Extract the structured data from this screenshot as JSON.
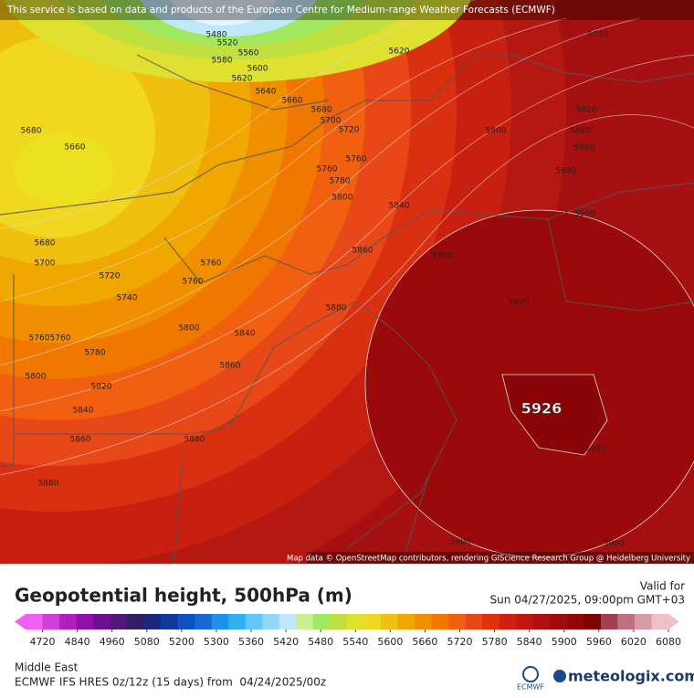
{
  "banner": "This service is based on data and products of the European Centre for Medium-range Weather Forecasts (ECMWF)",
  "map": {
    "contour_labels": [
      5480,
      5520,
      5560,
      5580,
      5600,
      5620,
      5640,
      5660,
      5680,
      5700,
      5720,
      5760,
      5760,
      5780,
      5800,
      5840,
      5860,
      5880,
      5900,
      5920,
      5900,
      5880,
      5860,
      5840,
      5820,
      5800,
      5720,
      5620,
      5680,
      5660,
      5680,
      5700,
      5720,
      5740,
      5760,
      5760,
      5760,
      5760,
      5780,
      5800,
      5820,
      5840,
      5860,
      5800,
      5840,
      5860,
      5880,
      5880,
      5900,
      5900,
      5920
    ],
    "max_label": 5926,
    "attribution": "Map data © OpenStreetMap contributors, rendering GIScience Research Group @ Heidelberg University"
  },
  "legend": {
    "title": "Geopotential height, 500hPa (m)",
    "ticks": [
      4720,
      4840,
      4960,
      5080,
      5200,
      5300,
      5360,
      5420,
      5480,
      5540,
      5600,
      5660,
      5720,
      5780,
      5840,
      5900,
      5960,
      6020,
      6080
    ],
    "colors": [
      "#f060f0",
      "#d040d8",
      "#b020c0",
      "#9010a8",
      "#701090",
      "#501878",
      "#302060",
      "#1a2a80",
      "#103aa0",
      "#1050c0",
      "#1868d8",
      "#2090e8",
      "#30b0f0",
      "#60c8f8",
      "#90d8f8",
      "#c0e8f8",
      "#c8f090",
      "#a0e860",
      "#c0e040",
      "#e0e030",
      "#f0d820",
      "#f0c010",
      "#f0a800",
      "#f09000",
      "#f07800",
      "#f06010",
      "#e84818",
      "#e03010",
      "#d02010",
      "#c01810",
      "#b01010",
      "#a00c0c",
      "#900808",
      "#800404",
      "#a04050",
      "#c07080",
      "#d898a8",
      "#f0c0c8"
    ]
  },
  "valid_label": "Valid for",
  "valid_time": "Sun 04/27/2025, 09:00pm GMT+03",
  "region": "Middle East",
  "model": "ECMWF IFS HRES 0z/12z (15 days) from  04/24/2025/00z",
  "logo_ecmwf": "ECMWF",
  "logo_meteologix": "meteologix.com"
}
